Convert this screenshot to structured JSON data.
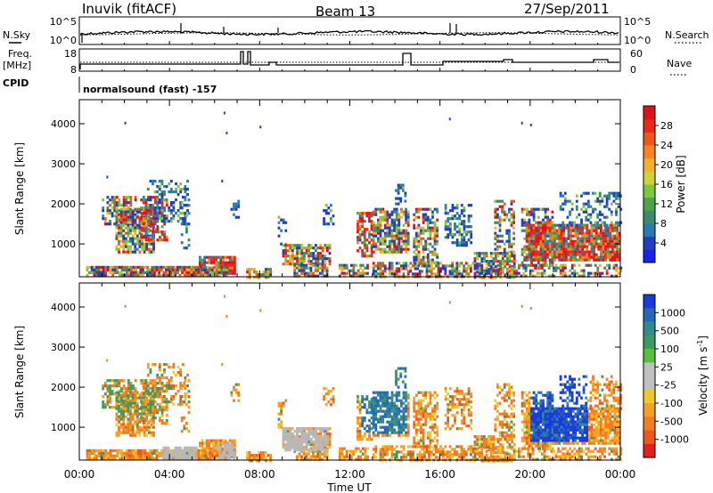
{
  "header": {
    "station": "Inuvik (fitACF)",
    "beam": "Beam 13",
    "date": "27/Sep/2011"
  },
  "labels": {
    "nsky": "N.Sky",
    "nsearch": "N.Search",
    "freq_line1": "Freq.",
    "freq_line2": "[MHz]",
    "nave": "Nave",
    "cpid": "CPID",
    "mode": "normalsound (fast) -157",
    "slant_range": "Slant Range [km]",
    "time_axis": "Time UT"
  },
  "chart_data": [
    {
      "type": "line",
      "panel": "noise",
      "left_ticks": [
        "10^5",
        "10^0"
      ],
      "right_ticks": [
        "10^5",
        "10^0"
      ],
      "series": [
        {
          "name": "N.Sky",
          "style": "solid"
        },
        {
          "name": "N.Search",
          "style": "dotted"
        }
      ]
    },
    {
      "type": "line",
      "panel": "frequency",
      "left_ticks": [
        "18",
        "8"
      ],
      "right_ticks": [
        "60",
        "0"
      ],
      "series": [
        {
          "name": "Freq. [MHz]",
          "style": "solid"
        },
        {
          "name": "Nave",
          "style": "dotted"
        }
      ]
    },
    {
      "type": "heatmap",
      "panel": "power",
      "x_range_hours": [
        0,
        24
      ],
      "ylim_km": [
        180,
        4600
      ],
      "y_ticks": [
        1000,
        2000,
        3000,
        4000
      ],
      "x_ticks": [
        "00:00",
        "04:00",
        "08:00",
        "12:00",
        "16:00",
        "20:00",
        "00:00"
      ],
      "colorbar": {
        "label": "Power [dB]",
        "ticks": [
          "4",
          "8",
          "12",
          "16",
          "20",
          "24",
          "28"
        ],
        "colors": [
          "#1a22f0",
          "#1e40c0",
          "#2a7ab0",
          "#3c8c6c",
          "#4ea448",
          "#7ec838",
          "#d0d238",
          "#f4b02c",
          "#f88420",
          "#f05818",
          "#e82a14",
          "#e0101a"
        ]
      }
    },
    {
      "type": "heatmap",
      "panel": "velocity",
      "x_range_hours": [
        0,
        24
      ],
      "ylim_km": [
        180,
        4600
      ],
      "y_ticks": [
        1000,
        2000,
        3000,
        4000
      ],
      "x_ticks": [
        "00:00",
        "04:00",
        "08:00",
        "12:00",
        "16:00",
        "20:00",
        "00:00"
      ],
      "colorbar": {
        "label": "Velocity [m s",
        "label_sup": "-1",
        "label_end": "]",
        "ticks": [
          "1000",
          "500",
          "100",
          "25",
          "-25",
          "-100",
          "-500",
          "-1000"
        ],
        "colors": [
          "#1a3ad8",
          "#2468b8",
          "#2f8c8c",
          "#3c9a5c",
          "#58c040",
          "#c0c0c0",
          "#c0c0c0",
          "#f0c828",
          "#f4a024",
          "#f47c20",
          "#f05818",
          "#e81c1c"
        ]
      }
    }
  ],
  "ground_scatter_color": "#b8b8b8"
}
